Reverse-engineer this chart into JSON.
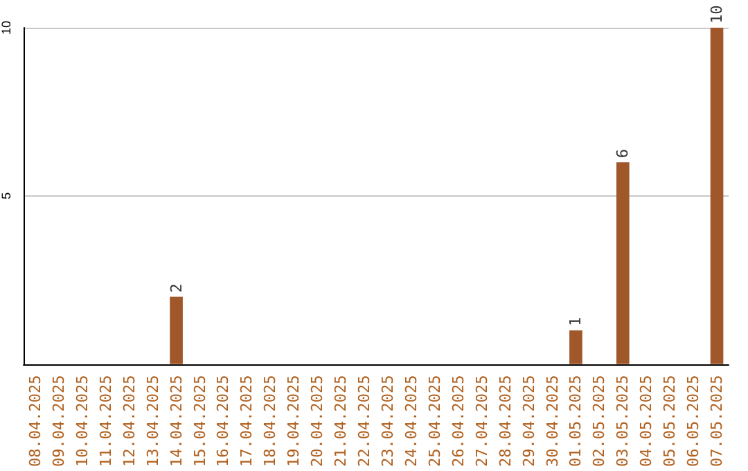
{
  "chart_data": {
    "type": "bar",
    "categories": [
      "08.04.2025",
      "09.04.2025",
      "10.04.2025",
      "11.04.2025",
      "12.04.2025",
      "13.04.2025",
      "14.04.2025",
      "15.04.2025",
      "16.04.2025",
      "17.04.2025",
      "18.04.2025",
      "19.04.2025",
      "20.04.2025",
      "21.04.2025",
      "22.04.2025",
      "23.04.2025",
      "24.04.2025",
      "25.04.2025",
      "26.04.2025",
      "27.04.2025",
      "28.04.2025",
      "29.04.2025",
      "30.04.2025",
      "01.05.2025",
      "02.05.2025",
      "03.05.2025",
      "04.05.2025",
      "05.05.2025",
      "06.05.2025",
      "07.05.2025"
    ],
    "values": [
      0,
      0,
      0,
      0,
      0,
      0,
      2,
      0,
      0,
      0,
      0,
      0,
      0,
      0,
      0,
      0,
      0,
      0,
      0,
      0,
      0,
      0,
      0,
      1,
      0,
      6,
      0,
      0,
      0,
      10
    ],
    "value_labels": [
      null,
      null,
      null,
      null,
      null,
      null,
      "2",
      null,
      null,
      null,
      null,
      null,
      null,
      null,
      null,
      null,
      null,
      null,
      null,
      null,
      null,
      null,
      null,
      "1",
      null,
      "6",
      null,
      null,
      null,
      "10"
    ],
    "color": "#a0582a",
    "ylim": [
      0,
      10
    ],
    "yticks": [
      5,
      10
    ],
    "grid": "y"
  }
}
